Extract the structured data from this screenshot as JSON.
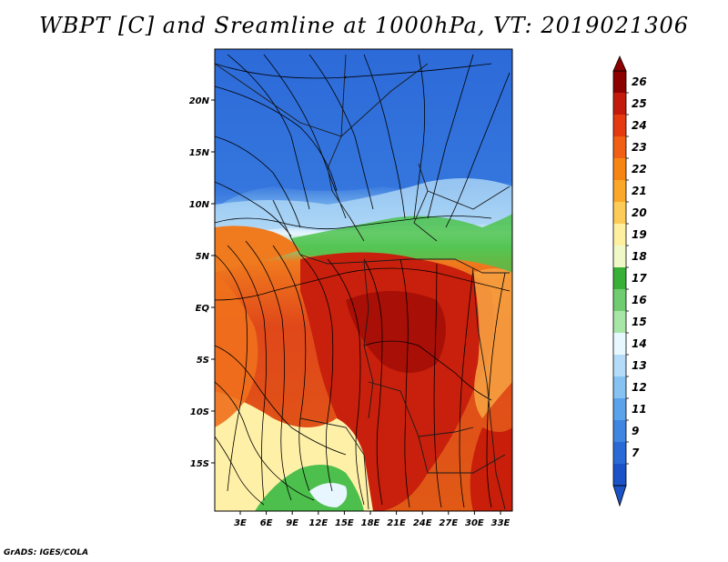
{
  "title": "WBPT [C] and Sreamline at 1000hPa, VT: 2019021306",
  "footer": "GrADS: IGES/COLA",
  "map": {
    "lat_labels": [
      "20N",
      "15N",
      "10N",
      "5N",
      "EQ",
      "5S",
      "10S",
      "15S"
    ],
    "lon_labels": [
      "3E",
      "6E",
      "9E",
      "12E",
      "15E",
      "18E",
      "21E",
      "24E",
      "27E",
      "30E",
      "33E"
    ],
    "colors": {
      "cold": "#2b66d6",
      "cool": "#4a8be6",
      "light_blue": "#8ec5f2",
      "pale": "#e8f6ff",
      "green": "#3cbf3c",
      "light_green": "#8fd98f",
      "cream": "#fff2a8",
      "orange": "#f07a1e",
      "red_orange": "#e04a14",
      "red": "#c81e0a",
      "dark_red": "#a00c05"
    }
  },
  "colorbar": {
    "labels": [
      "26",
      "25",
      "24",
      "23",
      "22",
      "21",
      "20",
      "19",
      "18",
      "17",
      "16",
      "15",
      "14",
      "13",
      "12",
      "11",
      "9",
      "7"
    ],
    "colors": [
      "#8c0000",
      "#c31a0c",
      "#e5390f",
      "#f05f14",
      "#f78514",
      "#fba82a",
      "#fdcc58",
      "#fff0a0",
      "#f0f8c8",
      "#38b038",
      "#70cc70",
      "#a8e6a8",
      "#e8f8ff",
      "#b4dcf8",
      "#86c2f2",
      "#5aa2ea",
      "#3e86e0",
      "#2a6ad6",
      "#1c52c8"
    ]
  }
}
